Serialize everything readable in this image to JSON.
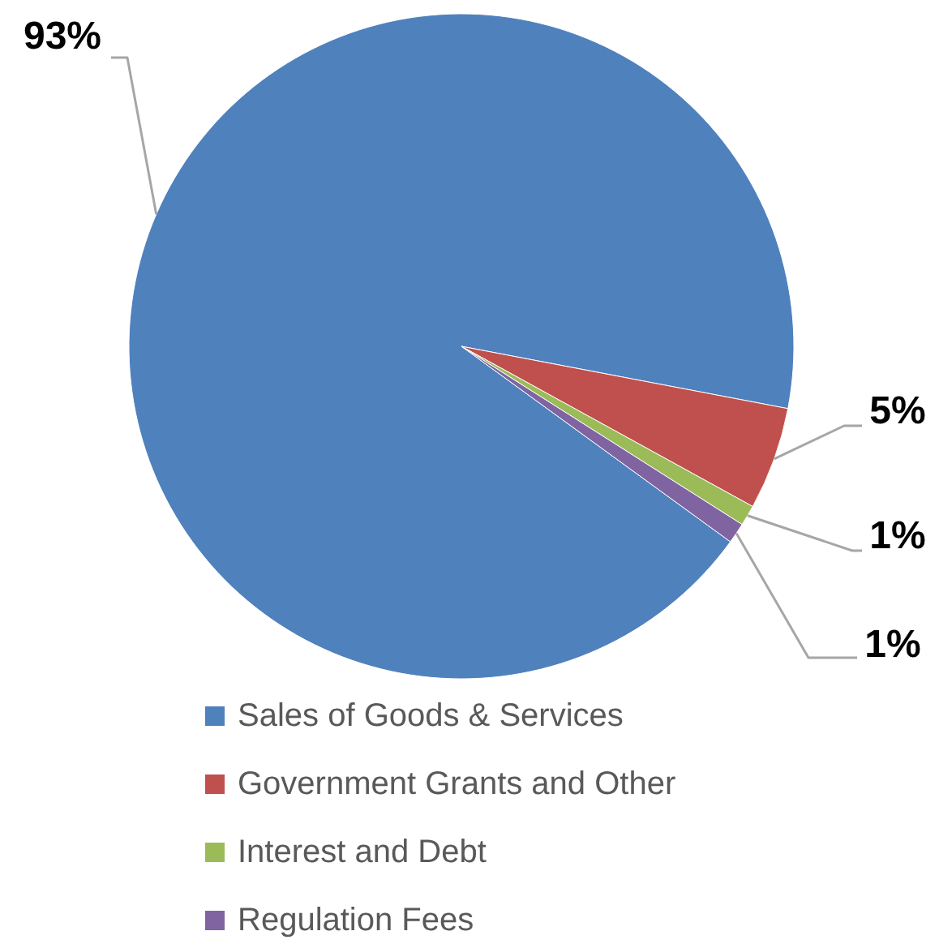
{
  "chart_data": {
    "type": "pie",
    "categories": [
      "Sales of Goods & Services",
      "Government Grants and Other",
      "Interest and Debt",
      "Regulation Fees"
    ],
    "values": [
      93,
      5,
      1,
      1
    ],
    "colors": [
      "#4f81bd",
      "#c0504d",
      "#9bbb59",
      "#8064a2"
    ],
    "value_labels": [
      "93%",
      "5%",
      "1%",
      "1%"
    ],
    "legend": "bottom"
  }
}
